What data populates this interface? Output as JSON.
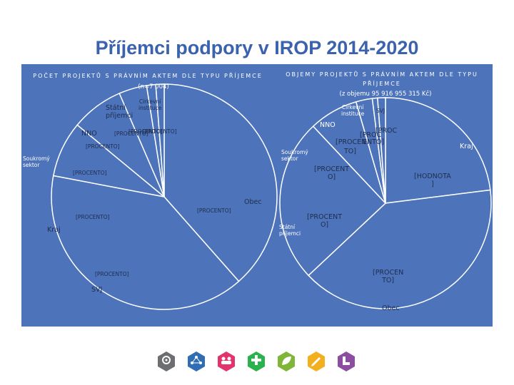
{
  "slide": {
    "title": "Příjemci podpory v IROP 2014-2020"
  },
  "left_chart": {
    "heading": "POČET PROJEKTŮ S PRÁVNÍM AKTEM DLE TYPU PŘÍJEMCE",
    "subtitle": "(n=7 004)"
  },
  "right_chart": {
    "heading_line1": "OBJEMY PROJEKTŮ S PRÁVNÍM AKTEM DLE TYPU",
    "heading_line2": "PŘÍJEMCE",
    "subtitle": "(z objemu 95 916 955 315 Kč)"
  },
  "chart_data": [
    {
      "type": "pie",
      "title": "POČET PROJEKTŮ S PRÁVNÍM AKTEM DLE TYPU PŘÍJEMCE",
      "subtitle": "(n=7 004)",
      "slices": [
        {
          "name": "Obec",
          "value": 38.5,
          "label": "[PROCENTO]"
        },
        {
          "name": "SVJ",
          "value": 39.5,
          "label": "[PROCENTO]"
        },
        {
          "name": "Kraj",
          "value": 8.0,
          "label": "[PROCENTO]"
        },
        {
          "name": "Soukromý sektor",
          "value": 7.5,
          "label": "[PROCENTO]"
        },
        {
          "name": "NNO",
          "value": 4.0,
          "label": "[PROCENTO]"
        },
        {
          "name": "Státní příjemci",
          "value": 1.3,
          "label": "[PROCENTO]"
        },
        {
          "name": "Církevní instituce",
          "value": 1.2,
          "label": "[PROCENTO]"
        }
      ]
    },
    {
      "type": "pie",
      "title": "OBJEMY PROJEKTŮ S PRÁVNÍM AKTEM DLE TYPU PŘÍJEMCE",
      "subtitle": "(z objemu 95 916 955 315 Kč)",
      "slices": [
        {
          "name": "Kraj",
          "value": 23.0,
          "label": "[HODNOTA]"
        },
        {
          "name": "Obec",
          "value": 40.0,
          "label": "[PROCENTO]"
        },
        {
          "name": "Státní příjemci",
          "value": 25.0,
          "label": "[PROCENTO]"
        },
        {
          "name": "Soukromý sektor",
          "value": 7.5,
          "label": "[PROCENTO]"
        },
        {
          "name": "NNO",
          "value": 2.5,
          "label": "[PROCENTO]"
        },
        {
          "name": "Církevní instituce",
          "value": 0.8,
          "label": "[PROCENTO]"
        },
        {
          "name": "SVJ",
          "value": 1.2,
          "label": "[PROCENTO]"
        }
      ]
    }
  ],
  "left_labels": {
    "cirkevni_line1": "Církevní",
    "cirkevni_line2": "instituce",
    "statni_line1": "Státní",
    "statni_line2": "příjemci",
    "nno": "NNO",
    "proc_top": "[PROCENTO]",
    "proc_top2": "[PROCENTO]",
    "proc_nno": "[PROCENTO]",
    "proc_edge": "[PROCENTO]",
    "soukromy_line1": "Soukromý",
    "soukromy_line2": "sektor",
    "proc_soukromy": "[PROCENTO]",
    "proc_obec": "[PROCENTO]",
    "obec": "Obec",
    "proc_kraj": "[PROCENTO]",
    "kraj": "Kraj",
    "proc_svj": "[PROCENTO]",
    "svj": "SVJ"
  },
  "right_labels": {
    "cirkevni_line1": "Církevní",
    "cirkevni_line2": "instituce",
    "svj": "SVJ",
    "nno": "NNO",
    "proc_a": "[PROC",
    "proc_b": "[PROC",
    "proc_c": "[PROCEN",
    "proc_d": "TO]",
    "proc_e": "ENTO]",
    "proc_f": "[PROC",
    "kraj": "Kraj",
    "soukromy_line1": "Soukromý",
    "soukromy_line2": "sektor",
    "proc_soukromy_line1": "[PROCENT",
    "proc_soukromy_line2": "O]",
    "hodnota_line1": "[HODNOTA",
    "hodnota_line2": "]",
    "proc_statni_line1": "[PROCENT",
    "proc_statni_line2": "O]",
    "statni_line1": "Státní",
    "statni_line2": "příjemci",
    "proc_obec_line1": "[PROCEN",
    "proc_obec_line2": "TO]",
    "obec": "Obec"
  },
  "footer_icons": [
    {
      "icon": "gear-icon",
      "color": "#6d6e71"
    },
    {
      "icon": "network-icon",
      "color": "#2f6eb5"
    },
    {
      "icon": "people-icon",
      "color": "#e2336d"
    },
    {
      "icon": "cross-icon",
      "color": "#2bb24c"
    },
    {
      "icon": "leaf-icon",
      "color": "#7fb539"
    },
    {
      "icon": "pencil-icon",
      "color": "#f2b01e"
    },
    {
      "icon": "chart-icon",
      "color": "#8b4ea1"
    }
  ],
  "colors": {
    "title": "#3b62ad",
    "panel": "#4d73bb",
    "slice_fill": "#4d73bb",
    "slice_stroke": "#ffffff"
  }
}
